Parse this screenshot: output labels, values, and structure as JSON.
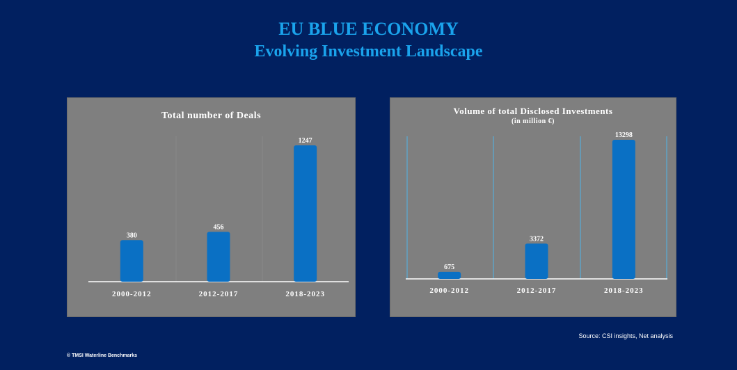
{
  "header": {
    "title": "EU BLUE ECONOMY",
    "subtitle": "Evolving Investment Landscape"
  },
  "footer": {
    "source": "Source: CSI insights, Net analysis",
    "copyright": "© TMSI Waterline Benchmarks"
  },
  "colors": {
    "background": "#012060",
    "title": "#1aa3ec",
    "panel": "#7f7f7f",
    "bar": "#0a70c4",
    "text": "#ffffff"
  },
  "chart_data": [
    {
      "type": "bar",
      "title": "Total number of Deals",
      "subtitle": "",
      "categories": [
        "2000-2012",
        "2012-2017",
        "2018-2023"
      ],
      "values": [
        380,
        456,
        1247
      ],
      "value_labels": [
        "380",
        "456",
        "1247"
      ],
      "ylim": [
        0,
        1247
      ],
      "grid": false,
      "legend": "none"
    },
    {
      "type": "bar",
      "title": "Volume of total Disclosed Investments",
      "subtitle": "(in million €)",
      "categories": [
        "2000-2012",
        "2012-2017",
        "2018-2023"
      ],
      "values": [
        675,
        3372,
        13298
      ],
      "value_labels": [
        "675",
        "3372",
        "13298"
      ],
      "ylim": [
        0,
        13298
      ],
      "grid": false,
      "legend": "none"
    }
  ]
}
